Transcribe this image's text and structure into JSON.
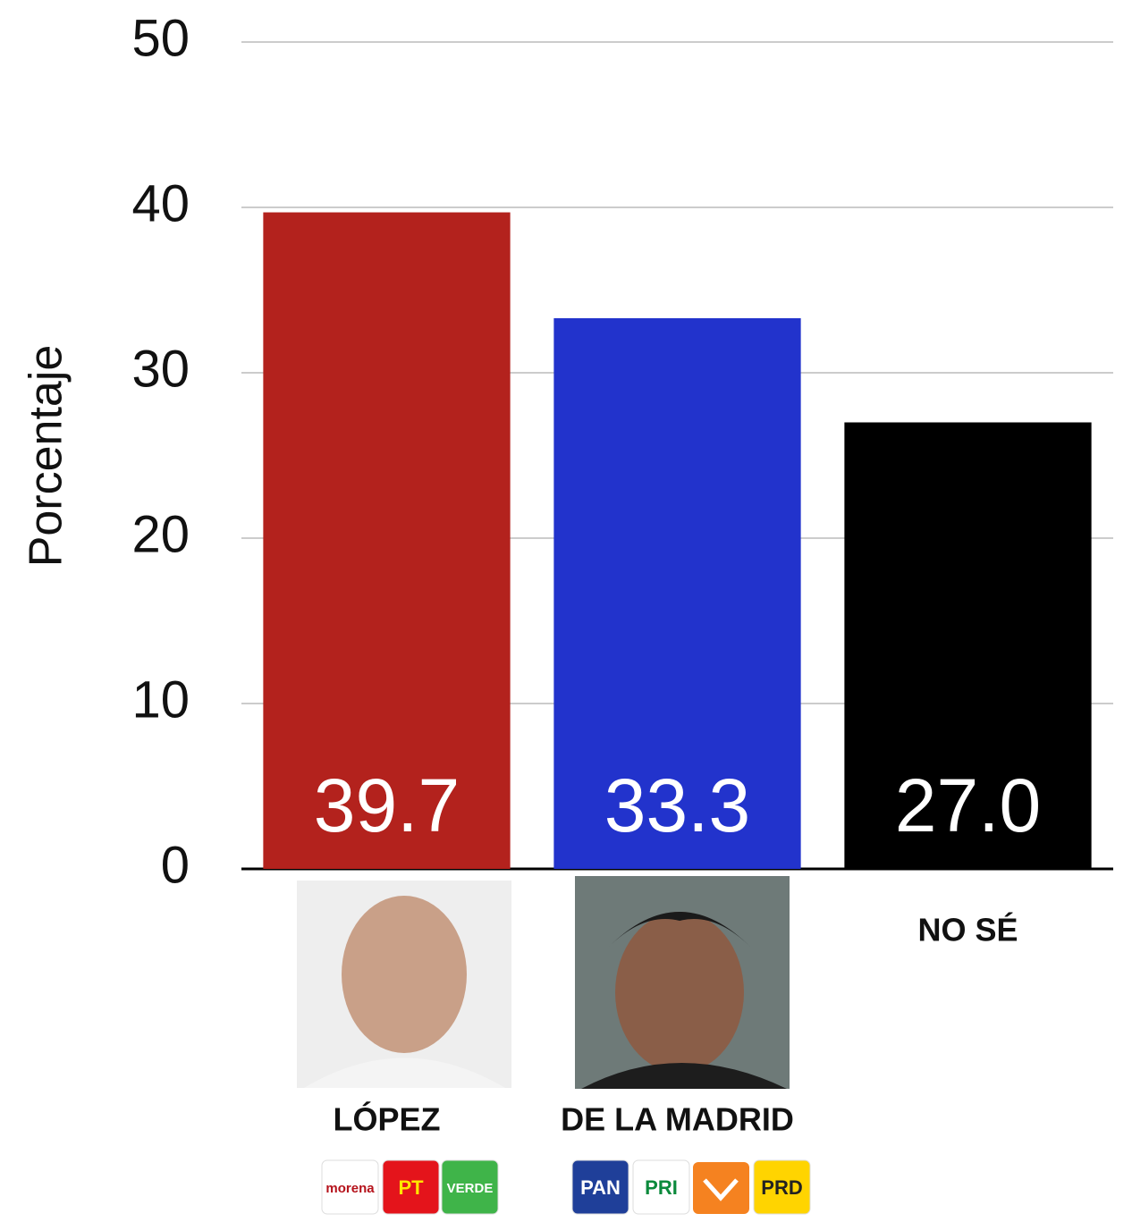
{
  "chart_data": {
    "type": "bar",
    "y_label": "Porcentaje",
    "categories": [
      "LÓPEZ",
      "DE LA MADRID",
      "NO SÉ"
    ],
    "values": [
      39.7,
      33.3,
      27.0
    ],
    "value_labels": [
      "39.7",
      "33.3",
      "27.0"
    ],
    "colors": [
      "#b3221d",
      "#2233cc",
      "#000000"
    ],
    "ylim": [
      0,
      50
    ],
    "yticks": [
      0,
      10,
      20,
      30,
      40,
      50
    ],
    "grid": true,
    "party_logos": [
      [
        "morena",
        "PT",
        "VERDE"
      ],
      [
        "PAN",
        "PRI",
        "PRD"
      ]
    ]
  }
}
